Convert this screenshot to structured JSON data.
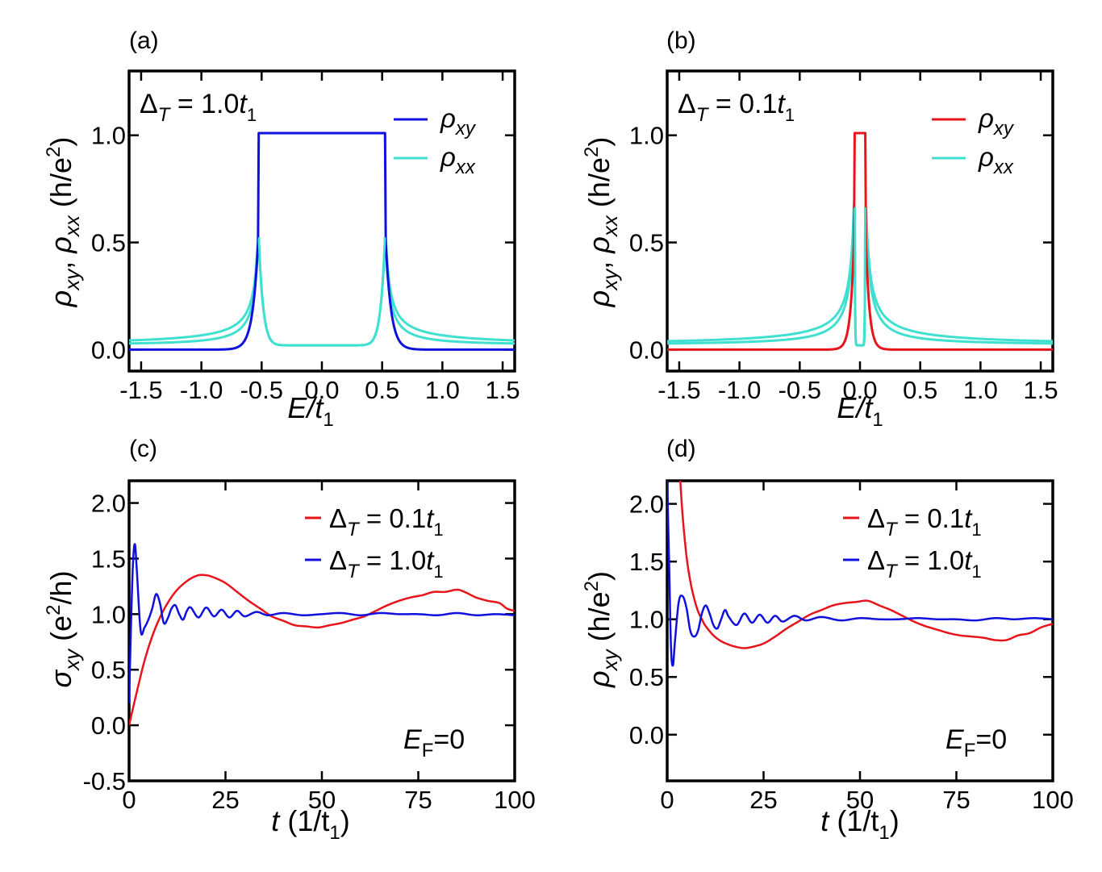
{
  "figure": {
    "panels": [
      "(a)",
      "(b)",
      "(c)",
      "(d)"
    ]
  },
  "colors": {
    "blue": "#1010dd",
    "cyan": "#40e0d0",
    "red": "#e8141c"
  },
  "labels": {
    "x_top": {
      "main": "E/t",
      "sub": "1"
    },
    "y_top": {
      "rho": "ρ",
      "sub_xy": "xy",
      "comma": ", ",
      "sub_xx": "xx",
      "unit": "(h/e",
      "sup": "2",
      "close": ")"
    },
    "x_bottom": {
      "t": "t",
      "unit": "(1/t",
      "sub": "1",
      "close": ")"
    },
    "y_c": {
      "sigma": "σ",
      "sub": "xy",
      "unit": "(e",
      "sup": "2",
      "rest": "/h)"
    },
    "y_d": {
      "rho": "ρ",
      "sub": "xy",
      "unit": "(h/e",
      "sup": "2",
      "close": ")"
    }
  },
  "chart_data": [
    {
      "panel": "(a)",
      "type": "line",
      "annotation": {
        "delta": "Δ",
        "sub": "T",
        "value": " = 1.0",
        "t": "t",
        "tsub": "1"
      },
      "xlabel": "E/t1",
      "ylabel": "ρxy, ρxx (h/e2)",
      "xlim": [
        -1.6,
        1.6
      ],
      "ylim": [
        -0.1,
        1.3
      ],
      "xticks": [
        "-1.5",
        "-1.0",
        "-0.5",
        "0.0",
        "0.5",
        "1.0",
        "1.5"
      ],
      "yticks": [
        "0.0",
        "0.5",
        "1.0"
      ],
      "gap_edge": 0.53,
      "series": [
        {
          "name": "ρxy",
          "sym": "ρ",
          "sub": "xy",
          "color": "#1010dd",
          "plateau": 1.01,
          "decay": 0.045
        },
        {
          "name": "ρxx",
          "sym": "ρ",
          "sub": "xx",
          "color": "#40e0d0",
          "peak": 0.52,
          "inside": 0.02,
          "tail": 0.02
        }
      ]
    },
    {
      "panel": "(b)",
      "type": "line",
      "annotation": {
        "delta": "Δ",
        "sub": "T",
        "value": " = 0.1",
        "t": "t",
        "tsub": "1"
      },
      "xlabel": "E/t1",
      "ylabel": "ρxy, ρxx (h/e2)",
      "xlim": [
        -1.6,
        1.6
      ],
      "ylim": [
        -0.1,
        1.3
      ],
      "xticks": [
        "-1.5",
        "-1.0",
        "-0.5",
        "0.0",
        "0.5",
        "1.0",
        "1.5"
      ],
      "yticks": [
        "0.0",
        "0.5",
        "1.0"
      ],
      "gap_edge": 0.05,
      "series": [
        {
          "name": "ρxy",
          "sym": "ρ",
          "sub": "xy",
          "color": "#e8141c",
          "plateau": 1.01,
          "decay": 0.03
        },
        {
          "name": "ρxx",
          "sym": "ρ",
          "sub": "xx",
          "color": "#40e0d0",
          "peak": 0.66,
          "inside": 0.02,
          "tail": 0.02
        }
      ]
    },
    {
      "panel": "(c)",
      "type": "line",
      "annotation": {
        "e": "E",
        "sub": "F",
        "value": "=0"
      },
      "xlabel": "t (1/t1)",
      "ylabel": "σxy (e2/h)",
      "xlim": [
        0,
        100
      ],
      "ylim": [
        -0.5,
        2.2
      ],
      "xticks": [
        "0",
        "25",
        "50",
        "75",
        "100"
      ],
      "yticks": [
        "-0.5",
        "0.0",
        "0.5",
        "1.0",
        "1.5",
        "2.0"
      ],
      "series": [
        {
          "name": "ΔT = 0.1t1",
          "value": " = 0.1",
          "color": "#e8141c",
          "x": [
            0,
            2,
            4,
            6,
            8,
            10,
            12,
            14,
            16,
            18,
            20,
            22,
            25,
            28,
            31,
            34,
            37,
            40,
            43,
            46,
            49,
            52,
            55,
            58,
            61,
            64,
            67,
            70,
            73,
            76,
            79,
            82,
            85,
            87,
            90,
            93,
            96,
            98,
            100
          ],
          "y": [
            0.0,
            0.3,
            0.58,
            0.8,
            0.97,
            1.1,
            1.2,
            1.27,
            1.32,
            1.35,
            1.35,
            1.33,
            1.28,
            1.2,
            1.12,
            1.05,
            0.98,
            0.94,
            0.9,
            0.89,
            0.88,
            0.9,
            0.92,
            0.95,
            0.98,
            1.03,
            1.08,
            1.12,
            1.15,
            1.17,
            1.2,
            1.2,
            1.22,
            1.2,
            1.15,
            1.12,
            1.1,
            1.05,
            1.03
          ]
        },
        {
          "name": "ΔT = 1.0t1",
          "value": " = 1.0",
          "color": "#1010dd",
          "x": [
            0,
            0.5,
            1,
            1.5,
            2,
            3,
            4,
            5,
            6,
            7,
            8,
            9,
            10,
            11,
            12,
            13,
            14,
            15,
            16,
            18,
            20,
            22,
            24,
            26,
            28,
            30,
            33,
            36,
            40,
            45,
            50,
            55,
            60,
            65,
            70,
            75,
            80,
            85,
            90,
            95,
            100
          ],
          "y": [
            0.2,
            0.9,
            1.45,
            1.63,
            1.4,
            0.85,
            0.88,
            0.95,
            1.05,
            1.18,
            1.1,
            0.92,
            0.96,
            1.05,
            1.08,
            1.0,
            0.95,
            1.03,
            1.06,
            0.97,
            1.06,
            0.98,
            1.04,
            0.97,
            1.03,
            0.98,
            1.02,
            0.99,
            1.01,
            0.99,
            1.0,
            1.01,
            0.99,
            1.01,
            1.0,
            1.0,
            0.99,
            1.01,
            0.99,
            1.0,
            0.99
          ]
        }
      ]
    },
    {
      "panel": "(d)",
      "type": "line",
      "annotation": {
        "e": "E",
        "sub": "F",
        "value": "=0"
      },
      "xlabel": "t (1/t1)",
      "ylabel": "ρxy (h/e2)",
      "xlim": [
        0,
        100
      ],
      "ylim": [
        -0.4,
        2.2
      ],
      "xticks": [
        "0",
        "25",
        "50",
        "75",
        "100"
      ],
      "yticks": [
        "0.0",
        "0.5",
        "1.0",
        "1.5",
        "2.0"
      ],
      "series": [
        {
          "name": "ΔT = 0.1t1",
          "value": " = 0.1",
          "color": "#e8141c",
          "x": [
            3.4,
            4,
            5,
            6,
            7,
            8,
            9,
            10,
            12,
            14,
            16,
            18,
            20,
            22,
            25,
            28,
            31,
            34,
            37,
            40,
            43,
            46,
            49,
            52,
            55,
            58,
            61,
            64,
            67,
            70,
            73,
            76,
            79,
            82,
            85,
            88,
            91,
            94,
            97,
            100
          ],
          "y": [
            2.2,
            1.9,
            1.55,
            1.33,
            1.18,
            1.07,
            1.0,
            0.94,
            0.86,
            0.81,
            0.78,
            0.76,
            0.75,
            0.76,
            0.79,
            0.85,
            0.92,
            0.98,
            1.04,
            1.08,
            1.12,
            1.14,
            1.15,
            1.16,
            1.12,
            1.08,
            1.03,
            0.98,
            0.94,
            0.91,
            0.88,
            0.86,
            0.85,
            0.84,
            0.82,
            0.82,
            0.86,
            0.88,
            0.93,
            0.96
          ]
        },
        {
          "name": "ΔT = 1.0t1",
          "value": " = 1.0",
          "color": "#1010dd",
          "x": [
            0,
            0.5,
            1,
            1.5,
            2,
            3,
            4,
            5,
            6,
            7,
            8,
            9,
            10,
            11,
            12,
            13,
            14,
            15,
            16,
            18,
            20,
            22,
            24,
            26,
            28,
            30,
            33,
            36,
            40,
            45,
            50,
            55,
            60,
            65,
            70,
            75,
            80,
            85,
            90,
            95,
            100
          ],
          "y": [
            2.2,
            1.5,
            0.75,
            0.6,
            0.8,
            1.15,
            1.2,
            1.1,
            0.9,
            0.85,
            0.9,
            1.05,
            1.12,
            1.05,
            0.95,
            0.92,
            1.0,
            1.08,
            1.02,
            0.95,
            1.05,
            0.97,
            1.04,
            0.97,
            1.03,
            0.98,
            1.03,
            0.99,
            1.02,
            0.99,
            1.01,
            1.0,
            1.0,
            1.01,
            1.0,
            1.0,
            0.99,
            1.01,
            1.0,
            1.01,
            1.0
          ]
        }
      ]
    }
  ]
}
